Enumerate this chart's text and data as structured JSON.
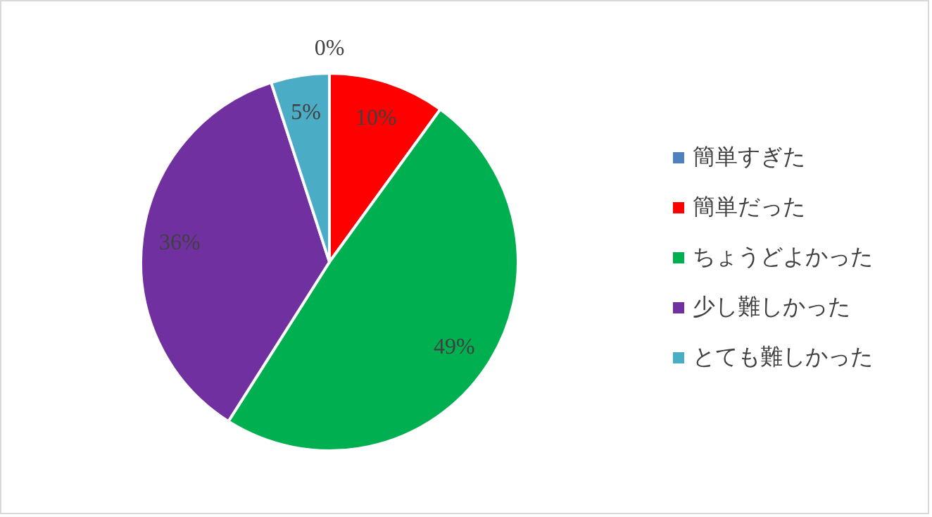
{
  "chart_data": {
    "type": "pie",
    "categories": [
      "簡単すぎた",
      "簡単だった",
      "ちょうどよかった",
      "少し難しかった",
      "とても難しかった"
    ],
    "values": [
      0,
      10,
      49,
      36,
      5
    ],
    "colors": [
      "#4f81bd",
      "#ff0000",
      "#00b050",
      "#7030a0",
      "#4bacc6"
    ],
    "value_labels": [
      "0%",
      "10%",
      "49%",
      "36%",
      "5%"
    ],
    "legend": "right"
  }
}
